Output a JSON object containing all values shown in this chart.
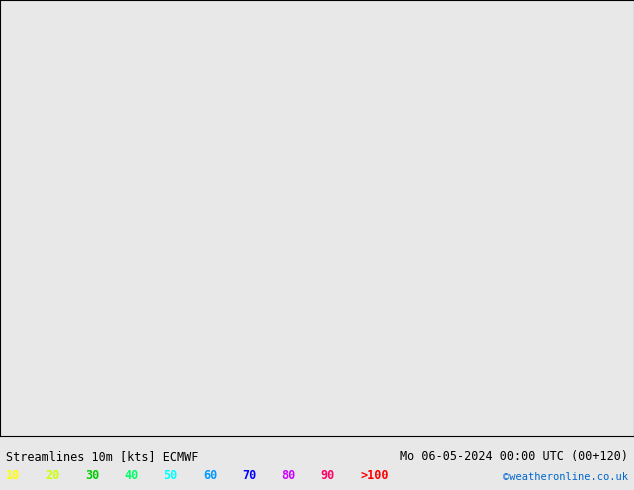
{
  "title_left": "Streamlines 10m [kts] ECMWF",
  "title_right": "Mo 06-05-2024 00:00 UTC (00+120)",
  "credit": "©weatheronline.co.uk",
  "legend_values": [
    "10",
    "20",
    "30",
    "40",
    "50",
    "60",
    "70",
    "80",
    "90",
    ">100"
  ],
  "legend_colors": [
    "#ffff00",
    "#ccff00",
    "#00cc00",
    "#00ff66",
    "#00ffff",
    "#0099ff",
    "#0000ff",
    "#cc00ff",
    "#ff0066",
    "#ff0000"
  ],
  "bg_color": "#e8e8e8",
  "map_bg": "#f0f0f0",
  "land_color": "#ccff99",
  "ocean_color": "#e8e8e8",
  "streamline_color_low": "#ffff00",
  "streamline_color_mid": "#66ff00",
  "streamline_color_high": "#00ff00",
  "figsize": [
    6.34,
    4.9
  ],
  "dpi": 100
}
